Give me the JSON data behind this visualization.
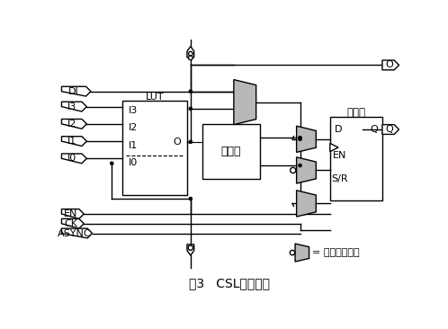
{
  "title": "图3   CSL单元结构",
  "bg_color": "#ffffff",
  "line_color": "#000000",
  "fill_color": "#b8b8b8",
  "font_size_label": 8,
  "font_size_title": 10,
  "lut_label": "LUT",
  "cw_label": "进位宽",
  "ff_label": "触发器",
  "legend_label": "= 初始数据编程"
}
